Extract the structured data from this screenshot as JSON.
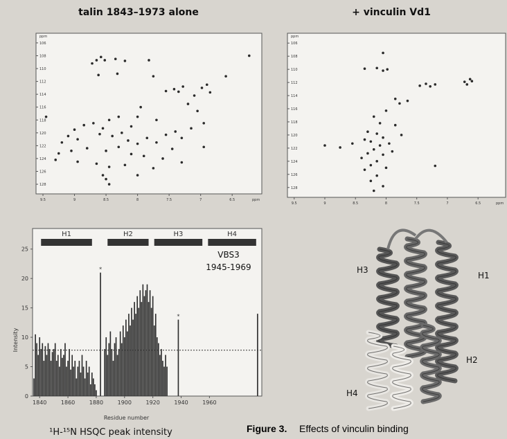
{
  "chart_data": [
    {
      "type": "scatter",
      "title": "talin 1843–1973 alone",
      "xlabel": "ppm",
      "ylabel": "ppm",
      "xlim": [
        9.61,
        6.03
      ],
      "xticks": [
        9.5,
        9.0,
        8.5,
        8.0,
        7.5,
        7.0,
        6.5
      ],
      "ylim": [
        104.5,
        129.5
      ],
      "yticks": [
        106,
        108,
        110,
        112,
        114,
        116,
        118,
        120,
        122,
        124,
        126,
        128
      ],
      "color": "#2a2a2a",
      "x": [
        9.45,
        8.72,
        8.65,
        8.58,
        8.52,
        8.35,
        8.2,
        8.32,
        8.62,
        7.82,
        7.75,
        6.6,
        7.42,
        7.35,
        7.28,
        7.1,
        6.98,
        6.9,
        6.85,
        7.55,
        7.2,
        7.95,
        8.0,
        7.7,
        8.1,
        8.3,
        8.45,
        8.55,
        8.7,
        8.85,
        9.0,
        9.1,
        9.2,
        8.95,
        8.6,
        8.4,
        8.25,
        8.15,
        8.0,
        7.85,
        7.7,
        7.55,
        7.4,
        7.3,
        7.15,
        6.95,
        9.25,
        9.05,
        8.8,
        8.5,
        8.3,
        8.1,
        7.9,
        7.6,
        7.45,
        9.3,
        8.95,
        8.65,
        8.45,
        8.2,
        7.75,
        7.3,
        8.55,
        8.5,
        8.45,
        8.0,
        6.95,
        7.05,
        6.23
      ],
      "y": [
        117.5,
        109.2,
        108.7,
        108.2,
        108.7,
        108.5,
        108.8,
        110.8,
        111,
        108.7,
        111.2,
        111.2,
        113.2,
        113.6,
        112.8,
        114.2,
        113,
        112.5,
        113.7,
        113.5,
        115.5,
        116,
        117.5,
        118,
        119,
        117.5,
        118,
        119.3,
        118.5,
        118.8,
        119.5,
        120.5,
        121.5,
        121,
        120.2,
        120.5,
        120,
        121.2,
        121.7,
        120.8,
        121.5,
        120.3,
        119.8,
        120.8,
        119.3,
        118.5,
        123.2,
        122.8,
        122.4,
        122.8,
        122.2,
        123.3,
        123.6,
        124,
        122.5,
        124.2,
        124.5,
        124.8,
        125.3,
        125,
        125.5,
        124.6,
        126.6,
        127.2,
        128,
        126.6,
        122.2,
        116.6,
        108.0
      ]
    },
    {
      "type": "scatter",
      "title": "+ vinculin Vd1",
      "xlabel": "ppm",
      "ylabel": "ppm",
      "xlim": [
        9.61,
        6.05
      ],
      "xticks": [
        9.5,
        9.0,
        8.5,
        8.0,
        7.5,
        7.0,
        6.5
      ],
      "ylim": [
        104.5,
        129.5
      ],
      "yticks": [
        106,
        108,
        110,
        112,
        114,
        116,
        118,
        120,
        122,
        124,
        126,
        128
      ],
      "color": "#2a2a2a",
      "x": [
        8.05,
        8.15,
        8.05,
        7.98,
        8.35,
        7.45,
        7.35,
        7.28,
        7.2,
        6.72,
        6.68,
        6.63,
        6.6,
        7.85,
        7.78,
        8.0,
        7.65,
        8.2,
        8.1,
        8.3,
        8.15,
        8.05,
        8.25,
        8.35,
        8.1,
        7.95,
        8.2,
        8.3,
        8.4,
        8.05,
        7.9,
        8.15,
        8.25,
        8.35,
        8.0,
        8.15,
        8.25,
        8.05,
        8.2,
        7.85,
        7.75,
        9.0,
        8.75,
        7.2,
        8.55
      ],
      "y": [
        107.5,
        109.8,
        110.2,
        110.0,
        109.9,
        112.5,
        112.2,
        112.6,
        112.3,
        111.9,
        112.3,
        111.5,
        111.8,
        114.5,
        115.2,
        116.3,
        114.8,
        117.2,
        118.2,
        119.5,
        119.8,
        120.4,
        121,
        120.7,
        121.6,
        121.3,
        122.2,
        122.8,
        123.5,
        123,
        122.5,
        124,
        124.6,
        125.3,
        125,
        126.2,
        127,
        127.8,
        128.5,
        118.5,
        120,
        121.6,
        121.9,
        124.7,
        121.3
      ]
    },
    {
      "type": "bar",
      "xlabel": "Residue number",
      "ylabel": "Intensity",
      "xlim": [
        1835,
        1997
      ],
      "xticks": [
        1840,
        1860,
        1880,
        1900,
        1920,
        1940,
        1960
      ],
      "ylim": [
        0,
        28.5
      ],
      "yticks": [
        0,
        5,
        10,
        15,
        20,
        25
      ],
      "color": "#2b2b2b",
      "x": [
        1836,
        1837,
        1838,
        1839,
        1840,
        1841,
        1842,
        1843,
        1844,
        1845,
        1846,
        1847,
        1848,
        1849,
        1850,
        1851,
        1852,
        1853,
        1854,
        1855,
        1856,
        1857,
        1858,
        1859,
        1860,
        1861,
        1862,
        1863,
        1864,
        1865,
        1866,
        1867,
        1868,
        1869,
        1870,
        1871,
        1872,
        1873,
        1874,
        1875,
        1876,
        1877,
        1878,
        1879,
        1880,
        1883,
        1886,
        1887,
        1888,
        1889,
        1890,
        1891,
        1892,
        1893,
        1894,
        1895,
        1896,
        1897,
        1898,
        1899,
        1900,
        1901,
        1902,
        1903,
        1904,
        1905,
        1906,
        1907,
        1908,
        1909,
        1910,
        1911,
        1912,
        1913,
        1914,
        1915,
        1916,
        1917,
        1918,
        1919,
        1920,
        1921,
        1922,
        1923,
        1924,
        1925,
        1926,
        1927,
        1928,
        1929,
        1930,
        1938,
        1994
      ],
      "values": [
        3,
        10.5,
        9,
        7,
        10,
        8,
        9,
        6,
        8.5,
        7,
        9,
        8,
        6,
        7.5,
        8,
        9,
        6,
        7,
        5,
        8,
        6.5,
        7,
        9,
        5,
        6,
        8,
        4.5,
        7,
        5,
        6,
        3,
        5,
        6,
        4,
        7,
        5,
        3,
        6,
        4,
        5,
        2,
        4,
        3,
        2,
        1,
        21,
        8,
        10,
        7,
        9,
        11,
        8,
        6,
        9,
        10,
        7,
        8,
        11,
        9,
        12,
        10,
        13,
        11,
        14,
        12,
        15,
        13,
        16,
        14,
        17,
        15,
        18,
        16,
        19,
        17,
        18,
        19,
        16,
        18,
        15,
        17,
        12,
        14,
        10,
        9,
        7,
        8,
        6,
        5,
        7,
        5,
        13,
        14
      ],
      "threshold": 7.8,
      "star": "*",
      "starred": [
        1883,
        1938
      ],
      "helices": [
        {
          "label": "H1",
          "start": 1841,
          "end": 1877
        },
        {
          "label": "H2",
          "start": 1888,
          "end": 1917
        },
        {
          "label": "H3",
          "start": 1921,
          "end": 1955
        },
        {
          "label": "H4",
          "start": 1959,
          "end": 1993
        }
      ],
      "annotation": [
        "VBS3",
        "1945-1969"
      ]
    }
  ],
  "figure": {
    "subcaption": "¹H-¹⁵N HSQC peak intensity",
    "caption_label": "Figure 3.",
    "caption_text": "Effects of vinculin binding",
    "structure_labels": [
      "H3",
      "H1",
      "H2",
      "H4"
    ]
  }
}
